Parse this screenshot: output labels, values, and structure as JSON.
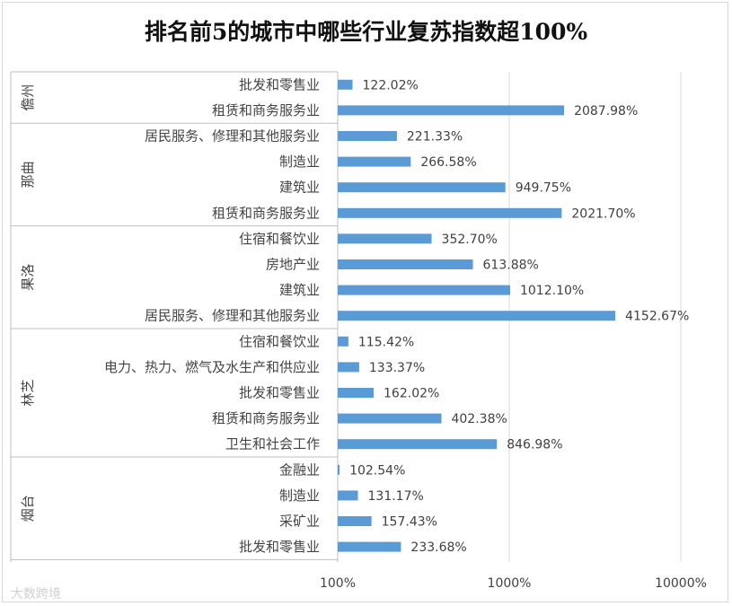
{
  "chart_data": {
    "type": "bar",
    "orientation": "horizontal",
    "title": "排名前5的城市中哪些行业复苏指数超100%",
    "xscale": "log",
    "xlim": [
      100,
      10000
    ],
    "x_tick_labels": [
      "100%",
      "1000%",
      "10000%"
    ],
    "x_tick_values": [
      100,
      1000,
      10000
    ],
    "bar_color": "#5b9bd5",
    "groups": [
      {
        "name": "儋州",
        "items": [
          {
            "label": "批发和零售业",
            "value": 122.02,
            "value_label": "122.02%"
          },
          {
            "label": "租赁和商务服务业",
            "value": 2087.98,
            "value_label": "2087.98%"
          }
        ]
      },
      {
        "name": "那曲",
        "items": [
          {
            "label": "居民服务、修理和其他服务业",
            "value": 221.33,
            "value_label": "221.33%"
          },
          {
            "label": "制造业",
            "value": 266.58,
            "value_label": "266.58%"
          },
          {
            "label": "建筑业",
            "value": 949.75,
            "value_label": "949.75%"
          },
          {
            "label": "租赁和商务服务业",
            "value": 2021.7,
            "value_label": "2021.70%"
          }
        ]
      },
      {
        "name": "果洛",
        "items": [
          {
            "label": "住宿和餐饮业",
            "value": 352.7,
            "value_label": "352.70%"
          },
          {
            "label": "房地产业",
            "value": 613.88,
            "value_label": "613.88%"
          },
          {
            "label": "建筑业",
            "value": 1012.1,
            "value_label": "1012.10%"
          },
          {
            "label": "居民服务、修理和其他服务业",
            "value": 4152.67,
            "value_label": "4152.67%"
          }
        ]
      },
      {
        "name": "林芝",
        "items": [
          {
            "label": "住宿和餐饮业",
            "value": 115.42,
            "value_label": "115.42%"
          },
          {
            "label": "电力、热力、燃气及水生产和供应业",
            "value": 133.37,
            "value_label": "133.37%"
          },
          {
            "label": "批发和零售业",
            "value": 162.02,
            "value_label": "162.02%"
          },
          {
            "label": "租赁和商务服务业",
            "value": 402.38,
            "value_label": "402.38%"
          },
          {
            "label": "卫生和社会工作",
            "value": 846.98,
            "value_label": "846.98%"
          }
        ]
      },
      {
        "name": "烟台",
        "items": [
          {
            "label": "金融业",
            "value": 102.54,
            "value_label": "102.54%"
          },
          {
            "label": "制造业",
            "value": 131.17,
            "value_label": "131.17%"
          },
          {
            "label": "采矿业",
            "value": 157.43,
            "value_label": "157.43%"
          },
          {
            "label": "批发和零售业",
            "value": 233.68,
            "value_label": "233.68%"
          }
        ]
      }
    ]
  },
  "watermark": "大数跨境"
}
